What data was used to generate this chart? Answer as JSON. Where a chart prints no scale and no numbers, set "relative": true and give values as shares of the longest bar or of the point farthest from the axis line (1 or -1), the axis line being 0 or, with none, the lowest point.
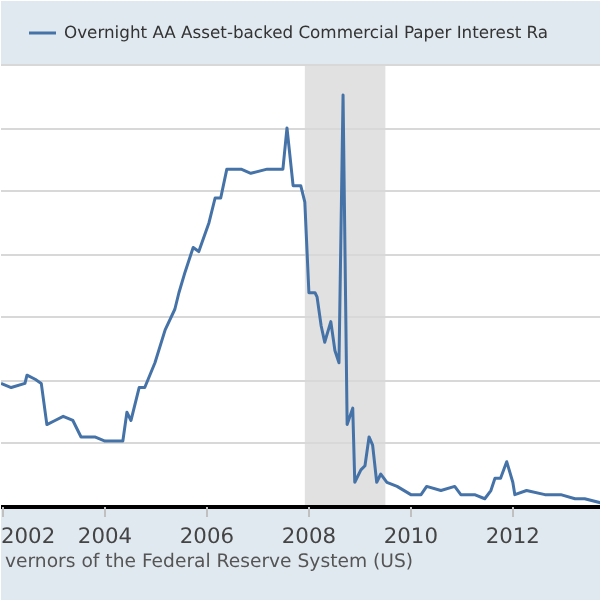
{
  "chart_data": {
    "type": "line",
    "relative": true,
    "x": [
      2001.96,
      2002.16,
      2002.43,
      2002.47,
      2002.63,
      2002.75,
      2002.86,
      2003.02,
      2003.18,
      2003.37,
      2003.53,
      2003.65,
      2003.8,
      2004.0,
      2004.2,
      2004.35,
      2004.43,
      2004.51,
      2004.67,
      2004.78,
      2004.98,
      2005.18,
      2005.37,
      2005.45,
      2005.57,
      2005.73,
      2005.84,
      2006.04,
      2006.16,
      2006.27,
      2006.39,
      2006.67,
      2006.86,
      2007.18,
      2007.33,
      2007.49,
      2007.57,
      2007.69,
      2007.73,
      2007.84,
      2007.92,
      2008.0,
      2008.12,
      2008.16,
      2008.24,
      2008.31,
      2008.43,
      2008.51,
      2008.59,
      2008.67,
      2008.75,
      2008.86,
      2008.9,
      2009.02,
      2009.1,
      2009.18,
      2009.25,
      2009.33,
      2009.41,
      2009.53,
      2009.73,
      2010.0,
      2010.2,
      2010.31,
      2010.59,
      2010.86,
      2010.98,
      2011.25,
      2011.45,
      2011.57,
      2011.65,
      2011.76,
      2011.88,
      2012.0,
      2012.04,
      2012.27,
      2012.63,
      2012.94,
      2013.22,
      2013.41,
      2013.73
    ],
    "series": [
      {
        "name": "Overnight AA Asset-backed Commercial Paper Interest Ra",
        "color": "#4572a7",
        "values": [
          0.3,
          0.29,
          0.3,
          0.32,
          0.31,
          0.3,
          0.2,
          0.21,
          0.22,
          0.21,
          0.17,
          0.17,
          0.17,
          0.16,
          0.16,
          0.16,
          0.23,
          0.21,
          0.29,
          0.29,
          0.35,
          0.43,
          0.48,
          0.52,
          0.57,
          0.63,
          0.62,
          0.69,
          0.75,
          0.75,
          0.82,
          0.82,
          0.81,
          0.82,
          0.82,
          0.82,
          0.92,
          0.78,
          0.78,
          0.78,
          0.74,
          0.52,
          0.52,
          0.51,
          0.44,
          0.4,
          0.45,
          0.38,
          0.35,
          1.0,
          0.2,
          0.24,
          0.06,
          0.09,
          0.1,
          0.17,
          0.15,
          0.06,
          0.08,
          0.06,
          0.05,
          0.03,
          0.03,
          0.05,
          0.04,
          0.05,
          0.03,
          0.03,
          0.02,
          0.04,
          0.07,
          0.07,
          0.11,
          0.06,
          0.03,
          0.04,
          0.03,
          0.03,
          0.02,
          0.02,
          0.01
        ]
      }
    ],
    "xlim": [
      2001.96,
      2013.73
    ],
    "xticks": [
      2002,
      2004,
      2006,
      2008,
      2010,
      2012
    ],
    "bands": [
      {
        "axis": "x",
        "from": 2007.92,
        "to": 2009.5,
        "color": "#e1e1e1"
      }
    ],
    "grid": "y",
    "legend": "top",
    "line_style": "solid",
    "marker": "none",
    "annotations": [
      "vernors of the Federal Reserve System (US)"
    ]
  }
}
